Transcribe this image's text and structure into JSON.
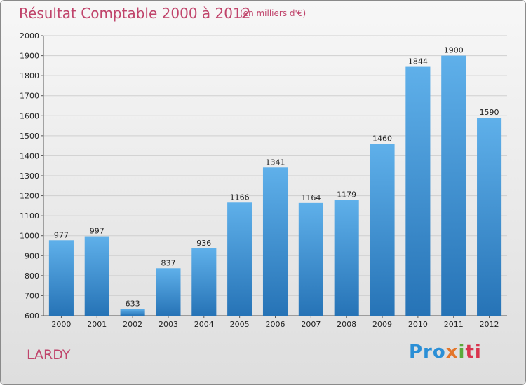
{
  "title": "Résultat Comptable 2000 à 2012",
  "subtitle": "(en milliers d'€)",
  "commune": "LARDY",
  "logo": {
    "p1": "Pro",
    "p2": "x",
    "p3": "i",
    "p4": "ti"
  },
  "colors": {
    "title": "#c0446b",
    "bar_top": "#5fb0ea",
    "bar_bottom": "#2673b6",
    "grid": "#cfcfcf"
  },
  "chart_data": {
    "type": "bar",
    "categories": [
      "2000",
      "2001",
      "2002",
      "2003",
      "2004",
      "2005",
      "2006",
      "2007",
      "2008",
      "2009",
      "2010",
      "2011",
      "2012"
    ],
    "values": [
      977,
      997,
      633,
      837,
      936,
      1166,
      1341,
      1164,
      1179,
      1460,
      1844,
      1900,
      1590
    ],
    "ylim": [
      600,
      2000
    ],
    "yticks": [
      600,
      700,
      800,
      900,
      1000,
      1100,
      1200,
      1300,
      1400,
      1500,
      1600,
      1700,
      1800,
      1900,
      2000
    ],
    "grid": true
  }
}
